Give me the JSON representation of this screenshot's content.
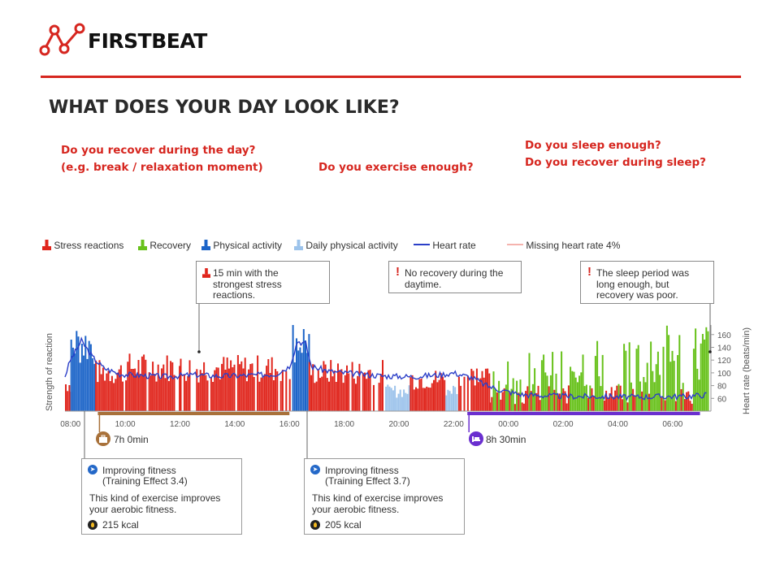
{
  "brand": {
    "name": "FIRSTBEAT"
  },
  "title": "WHAT DOES YOUR DAY LOOK LIKE?",
  "questions": {
    "recover_day": [
      "Do you recover during the day?",
      "(e.g. break / relaxation moment)"
    ],
    "exercise": "Do you exercise enough?",
    "sleep": [
      "Do you sleep enough?",
      "Do you recover during sleep?"
    ]
  },
  "legend": {
    "stress": "Stress reactions",
    "recovery": "Recovery",
    "physical": "Physical activity",
    "daily_physical": "Daily physical activity",
    "heart_rate": "Heart rate",
    "missing": "Missing heart rate 4%"
  },
  "colors": {
    "brand_red": "#d6261f",
    "stress": "#e0251c",
    "recovery": "#67c11a",
    "physical": "#1c64c8",
    "daily_physical": "#9cc3eb",
    "heart_rate": "#2b3fc8",
    "missing": "#f29a93",
    "work_bar": "#a8713a",
    "sleep_bar": "#6a2fcf"
  },
  "callouts": {
    "stress": [
      "15 min with the",
      "strongest stress",
      "reactions."
    ],
    "no_recovery": [
      "No recovery during the",
      "daytime."
    ],
    "sleep": [
      "The sleep period was",
      "long enough, but",
      "recovery was poor."
    ]
  },
  "cards": [
    {
      "line1": "Improving fitness",
      "line2": "(Training Effect 3.4)",
      "desc": [
        "This kind of exercise improves",
        "your aerobic fitness."
      ],
      "kcal": "215 kcal"
    },
    {
      "line1": "Improving fitness",
      "line2": "(Training Effect 3.7)",
      "desc": [
        "This kind of exercise improves",
        "your aerobic fitness."
      ],
      "kcal": "205 kcal"
    }
  ],
  "periods": {
    "work": "7h 0min",
    "sleep": "8h 30min"
  },
  "chart_data": {
    "type": "bar",
    "ylabel": "Strength of reaction",
    "y2label": "Heart rate (beats/min)",
    "y2_ticks": [
      "160",
      "140",
      "120",
      "100",
      "80",
      "60"
    ],
    "y2_range": [
      40,
      175
    ],
    "x_ticks": [
      "08:00",
      "10:00",
      "12:00",
      "14:00",
      "16:00",
      "18:00",
      "20:00",
      "22:00",
      "00:00",
      "02:00",
      "04:00",
      "06:00"
    ],
    "x_range_hours": [
      7.8,
      31.4
    ],
    "segments": [
      {
        "type": "stress",
        "from": 7.8,
        "to": 8.0,
        "level": 0.38
      },
      {
        "type": "physical",
        "from": 8.0,
        "to": 8.9,
        "level": 0.95
      },
      {
        "type": "stress",
        "from": 8.9,
        "to": 10.0,
        "level": 0.55
      },
      {
        "type": "stress",
        "from": 10.0,
        "to": 12.0,
        "level": 0.62
      },
      {
        "type": "stress",
        "from": 12.0,
        "to": 16.0,
        "level": 0.6
      },
      {
        "type": "physical",
        "from": 16.1,
        "to": 16.7,
        "level": 1.0
      },
      {
        "type": "stress",
        "from": 16.7,
        "to": 19.5,
        "level": 0.55
      },
      {
        "type": "daily_physical",
        "from": 19.5,
        "to": 20.4,
        "level": 0.28
      },
      {
        "type": "stress",
        "from": 20.4,
        "to": 21.7,
        "level": 0.45
      },
      {
        "type": "daily_physical",
        "from": 21.7,
        "to": 22.1,
        "level": 0.3
      },
      {
        "type": "stress",
        "from": 22.1,
        "to": 23.3,
        "level": 0.5
      },
      {
        "type": "mixed_sleep",
        "from": 23.3,
        "to": 31.3,
        "level": 0.7
      }
    ],
    "heart_rate": [
      [
        7.8,
        95
      ],
      [
        8.0,
        120
      ],
      [
        8.4,
        150
      ],
      [
        8.8,
        125
      ],
      [
        9.2,
        108
      ],
      [
        9.8,
        98
      ],
      [
        10.5,
        96
      ],
      [
        11.5,
        94
      ],
      [
        12.5,
        97
      ],
      [
        13.5,
        95
      ],
      [
        14.5,
        96
      ],
      [
        15.5,
        98
      ],
      [
        16.0,
        110
      ],
      [
        16.3,
        150
      ],
      [
        16.6,
        145
      ],
      [
        16.8,
        110
      ],
      [
        17.5,
        102
      ],
      [
        18.5,
        98
      ],
      [
        19.5,
        95
      ],
      [
        20.5,
        94
      ],
      [
        21.5,
        97
      ],
      [
        22.0,
        100
      ],
      [
        22.7,
        92
      ],
      [
        23.2,
        80
      ],
      [
        23.8,
        72
      ],
      [
        24.5,
        66
      ],
      [
        25.5,
        64
      ],
      [
        26.5,
        63
      ],
      [
        27.5,
        63
      ],
      [
        28.5,
        62
      ],
      [
        29.5,
        63
      ],
      [
        30.5,
        63
      ],
      [
        31.3,
        66
      ]
    ],
    "periods": [
      {
        "name": "work",
        "from": 9.0,
        "to": 16.0,
        "label": "7h 0min"
      },
      {
        "name": "sleep",
        "from": 22.5,
        "to": 31.0,
        "label": "8h 30min"
      }
    ]
  }
}
